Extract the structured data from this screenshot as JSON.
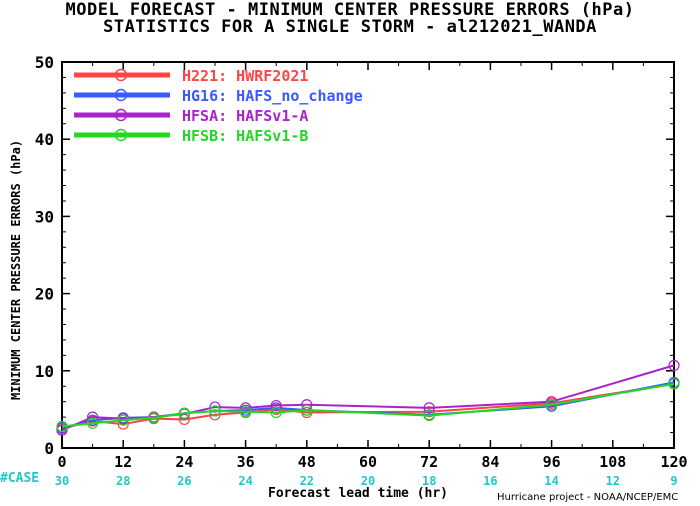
{
  "title_line1": "MODEL FORECAST - MINIMUM CENTER PRESSURE ERRORS (hPa)",
  "title_line2": "STATISTICS FOR A SINGLE STORM - al212021_WANDA",
  "credit": "Hurricane project - NOAA/NCEP/EMC",
  "colors": {
    "case": "#1fc8c8"
  },
  "chart_data": {
    "type": "line",
    "title": "MODEL FORECAST - MINIMUM CENTER PRESSURE ERRORS (hPa)",
    "subtitle": "STATISTICS FOR A SINGLE STORM - al212021_WANDA",
    "xlabel": "Forecast lead time (hr)",
    "ylabel": "MINIMUM CENTER PRESSURE ERRORS (hPa)",
    "xlim": [
      0,
      120
    ],
    "ylim": [
      0,
      50
    ],
    "x_ticks": [
      "0",
      "12",
      "24",
      "36",
      "48",
      "60",
      "72",
      "84",
      "96",
      "108",
      "120"
    ],
    "y_ticks": [
      "0",
      "10",
      "20",
      "30",
      "40",
      "50"
    ],
    "case_label": "#CASE",
    "case_counts": [
      "30",
      "28",
      "26",
      "24",
      "22",
      "20",
      "18",
      "16",
      "14",
      "12",
      "9"
    ],
    "legend_position": "top-left",
    "grid": false,
    "series": [
      {
        "name": "H221: HWRF2021",
        "color": "#ff4444",
        "x": [
          0,
          6,
          12,
          18,
          24,
          30,
          36,
          42,
          48,
          72,
          96,
          120
        ],
        "y": [
          2.5,
          3.5,
          3.1,
          3.8,
          3.7,
          4.3,
          4.6,
          5.0,
          4.6,
          4.7,
          5.8,
          8.3
        ]
      },
      {
        "name": "HG16: HAFS_no_change",
        "color": "#3a5aff",
        "x": [
          0,
          6,
          12,
          18,
          24,
          30,
          36,
          42,
          48,
          72,
          96,
          120
        ],
        "y": [
          2.6,
          3.6,
          3.9,
          4.0,
          4.5,
          4.8,
          4.9,
          5.2,
          4.9,
          4.3,
          5.4,
          8.5
        ]
      },
      {
        "name": "HFSA: HAFSv1-A",
        "color": "#aa22cc",
        "x": [
          0,
          6,
          12,
          18,
          24,
          30,
          36,
          42,
          48,
          72,
          96,
          120
        ],
        "y": [
          2.3,
          4.0,
          3.8,
          4.0,
          4.4,
          5.3,
          5.2,
          5.5,
          5.6,
          5.2,
          6.0,
          10.7
        ]
      },
      {
        "name": "HFSB: HAFSv1-B",
        "color": "#22d822",
        "x": [
          0,
          6,
          12,
          18,
          24,
          30,
          36,
          42,
          48,
          72,
          96,
          120
        ],
        "y": [
          2.8,
          3.2,
          3.6,
          3.9,
          4.5,
          4.8,
          4.7,
          4.6,
          4.9,
          4.2,
          5.6,
          8.3
        ]
      }
    ]
  }
}
